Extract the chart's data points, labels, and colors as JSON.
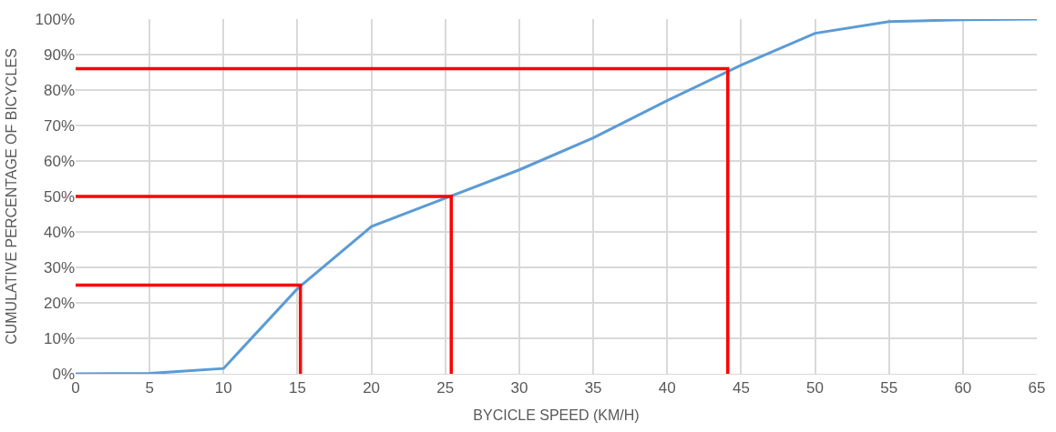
{
  "chart_data": {
    "type": "line",
    "xlabel": "BYCICLE SPEED (KM/H)",
    "ylabel": "CUMULATIVE PERCENTAGE OF BICYCLES",
    "xlim": [
      0,
      65
    ],
    "xticks": [
      0,
      5,
      10,
      15,
      20,
      25,
      30,
      35,
      40,
      45,
      50,
      55,
      60,
      65
    ],
    "ylim": [
      0,
      100
    ],
    "yticks": [
      {
        "value": 0,
        "label": "0%"
      },
      {
        "value": 10,
        "label": "10%"
      },
      {
        "value": 20,
        "label": "20%"
      },
      {
        "value": 30,
        "label": "30%"
      },
      {
        "value": 40,
        "label": "40%"
      },
      {
        "value": 50,
        "label": "50%"
      },
      {
        "value": 60,
        "label": "60%"
      },
      {
        "value": 70,
        "label": "70%"
      },
      {
        "value": 80,
        "label": "80%"
      },
      {
        "value": 90,
        "label": "90%"
      },
      {
        "value": 100,
        "label": "100%"
      }
    ],
    "grid": true,
    "marker": "none",
    "line_style": "solid",
    "series": [
      {
        "color": "#5b9bd5",
        "x": [
          0,
          5,
          10,
          15,
          20,
          25,
          30,
          35,
          40,
          45,
          50,
          55,
          60,
          65
        ],
        "values": [
          0,
          0.1,
          1.5,
          24,
          41.5,
          49.5,
          57.5,
          66.5,
          77,
          87,
          96,
          99.3,
          99.8,
          100
        ]
      },
      {
        "type": "line",
        "color": "#ff0000",
        "x": [
          0,
          15.2,
          15.2
        ],
        "values": [
          25,
          25,
          0
        ]
      },
      {
        "type": "line",
        "color": "#ff0000",
        "x": [
          0,
          25.4,
          25.4
        ],
        "values": [
          50,
          50,
          0
        ]
      },
      {
        "type": "line",
        "color": "#ff0000",
        "x": [
          0,
          44.1,
          44.1
        ],
        "values": [
          86,
          86,
          0
        ]
      }
    ]
  }
}
